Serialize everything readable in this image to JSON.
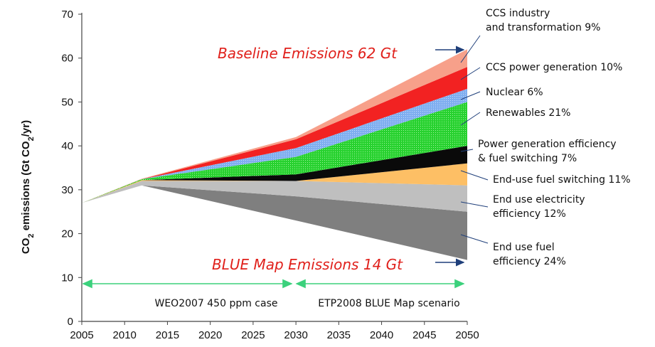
{
  "chart_data": {
    "type": "area",
    "title": "",
    "xlabel": "",
    "ylabel": "CO2 emissions (Gt CO2/yr)",
    "ylabel_parts": {
      "a": "CO",
      "b": "2",
      "c": " emissions (Gt CO",
      "d": "2",
      "e": "/yr)"
    },
    "xlim": [
      2005,
      2050
    ],
    "ylim": [
      0,
      70
    ],
    "x_ticks": [
      2005,
      2010,
      2015,
      2020,
      2025,
      2030,
      2035,
      2040,
      2045,
      2050
    ],
    "y_ticks": [
      0,
      10,
      20,
      30,
      40,
      50,
      60,
      70
    ],
    "x": [
      2005,
      2012,
      2030,
      2050
    ],
    "blue_map_line": [
      27,
      31,
      23,
      14
    ],
    "baseline_line": [
      27,
      32.5,
      42,
      62
    ],
    "series": [
      {
        "name": "End use fuel efficiency 24%",
        "values": [
          0,
          0,
          5.5,
          11
        ],
        "color": "#7f7f7f"
      },
      {
        "name": "End use electricity efficiency 12%",
        "values": [
          0,
          1,
          3.5,
          6
        ],
        "color": "#bfbfbf"
      },
      {
        "name": "End-use fuel switching 11%",
        "values": [
          0,
          0.2,
          0,
          5
        ],
        "color": "#fdbf65"
      },
      {
        "name": "Power generation efficiency & fuel switching 7%",
        "values": [
          0,
          0,
          1.5,
          4
        ],
        "color": "#0a0a0a"
      },
      {
        "name": "Renewables 21%",
        "values": [
          0,
          0.2,
          4,
          10
        ],
        "color": "#27d12f"
      },
      {
        "name": "Nuclear 6%",
        "values": [
          0,
          0,
          2,
          3
        ],
        "color": "#7faef0"
      },
      {
        "name": "CCS power generation 10%",
        "values": [
          0,
          0,
          2,
          5
        ],
        "color": "#f22222"
      },
      {
        "name": "CCS industry and transformation 9%",
        "values": [
          0,
          0.1,
          0.5,
          4
        ],
        "color": "#f7a08a"
      }
    ]
  },
  "annotations": {
    "baseline": "Baseline Emissions 62 Gt",
    "bluemap": "BLUE Map Emissions 14 Gt",
    "period1": "WEO2007 450 ppm case",
    "period2": "ETP2008 BLUE Map scenario",
    "labels": [
      {
        "lines": [
          "CCS industry",
          "and transformation 9%"
        ]
      },
      {
        "lines": [
          "CCS power generation 10%"
        ]
      },
      {
        "lines": [
          "Nuclear 6%"
        ]
      },
      {
        "lines": [
          "Renewables 21%"
        ]
      },
      {
        "lines": [
          "Power generation efficiency",
          "& fuel switching 7%"
        ]
      },
      {
        "lines": [
          "End-use fuel switching 11%"
        ]
      },
      {
        "lines": [
          "End use electricity",
          "efficiency 12%"
        ]
      },
      {
        "lines": [
          "End use fuel",
          "efficiency 24%"
        ]
      }
    ]
  },
  "colors": {
    "accent_red": "#e0201b",
    "arrow_green": "#3bd17c",
    "arrow_blue": "#1f3f7a"
  }
}
